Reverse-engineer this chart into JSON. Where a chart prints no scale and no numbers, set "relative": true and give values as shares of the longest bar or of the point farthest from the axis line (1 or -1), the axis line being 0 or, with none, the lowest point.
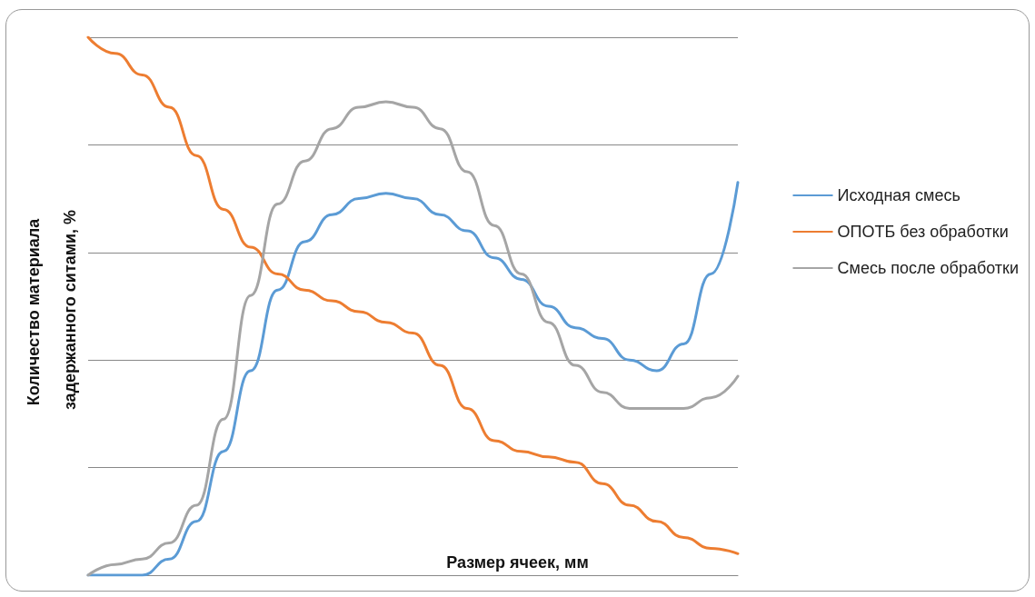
{
  "chart_data": {
    "type": "line",
    "relative": true,
    "xlabel": "Размер ячеек, мм",
    "ylabel": "Количество материала задержанного ситами, %",
    "categories": [
      null,
      null,
      null,
      null,
      null,
      null,
      null,
      null,
      null,
      null,
      null,
      null,
      null,
      null,
      null,
      null,
      null,
      null,
      null,
      null,
      null,
      null,
      null,
      null,
      null
    ],
    "series": [
      {
        "name": "Исходная смесь",
        "color": "#5b9bd5",
        "values": [
          0,
          0.0,
          0.0,
          0.03,
          0.1,
          0.23,
          0.38,
          0.53,
          0.62,
          0.67,
          0.7,
          0.71,
          0.7,
          0.67,
          0.64,
          0.59,
          0.55,
          0.5,
          0.46,
          0.44,
          0.4,
          0.38,
          0.43,
          0.56,
          0.73
        ]
      },
      {
        "name": "ОПОТБ без обработки",
        "color": "#ed7d31",
        "values": [
          1.0,
          0.97,
          0.93,
          0.87,
          0.78,
          0.68,
          0.61,
          0.56,
          0.53,
          0.51,
          0.49,
          0.47,
          0.45,
          0.39,
          0.31,
          0.25,
          0.23,
          0.22,
          0.21,
          0.17,
          0.13,
          0.1,
          0.07,
          0.05,
          0.04
        ]
      },
      {
        "name": "Смесь после обработки",
        "color": "#a5a5a5",
        "values": [
          0,
          0.02,
          0.03,
          0.06,
          0.13,
          0.29,
          0.52,
          0.69,
          0.77,
          0.83,
          0.87,
          0.88,
          0.87,
          0.83,
          0.75,
          0.65,
          0.56,
          0.47,
          0.39,
          0.34,
          0.31,
          0.31,
          0.31,
          0.33,
          0.37
        ]
      }
    ],
    "grid": "y",
    "legend": "right",
    "marker": "none",
    "line_style": "solid"
  }
}
